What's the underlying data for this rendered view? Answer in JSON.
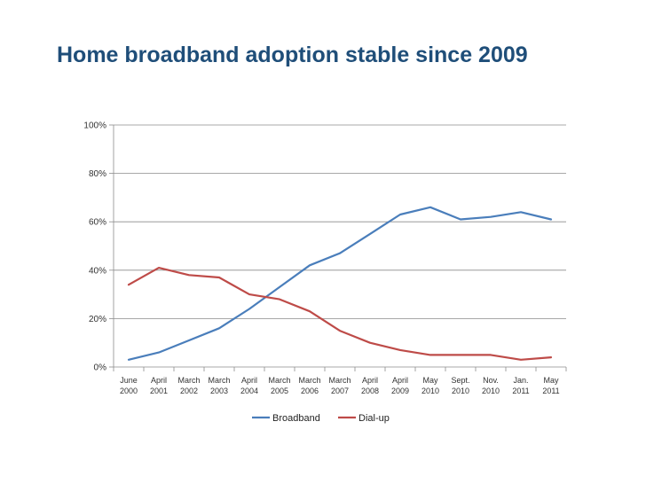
{
  "chart_data": {
    "type": "line",
    "title": "Home broadband adoption stable since 2009",
    "xlabel": "",
    "ylabel": "",
    "ylim": [
      0,
      100
    ],
    "yticks": [
      "0%",
      "20%",
      "40%",
      "60%",
      "80%",
      "100%"
    ],
    "categories": [
      [
        "June",
        "2000"
      ],
      [
        "April",
        "2001"
      ],
      [
        "March",
        "2002"
      ],
      [
        "March",
        "2003"
      ],
      [
        "April",
        "2004"
      ],
      [
        "March",
        "2005"
      ],
      [
        "March",
        "2006"
      ],
      [
        "March",
        "2007"
      ],
      [
        "April",
        "2008"
      ],
      [
        "April",
        "2009"
      ],
      [
        "May",
        "2010"
      ],
      [
        "Sept.",
        "2010"
      ],
      [
        "Nov.",
        "2010"
      ],
      [
        "Jan.",
        "2011"
      ],
      [
        "May",
        "2011"
      ]
    ],
    "series": [
      {
        "name": "Broadband",
        "color": "#4a7ebb",
        "values": [
          3,
          6,
          11,
          16,
          24,
          33,
          42,
          47,
          55,
          63,
          66,
          61,
          62,
          64,
          61
        ]
      },
      {
        "name": "Dial-up",
        "color": "#be4b48",
        "values": [
          34,
          41,
          38,
          37,
          30,
          28,
          23,
          15,
          10,
          7,
          5,
          5,
          5,
          3,
          4
        ]
      }
    ],
    "legend_position": "bottom",
    "grid": true
  }
}
